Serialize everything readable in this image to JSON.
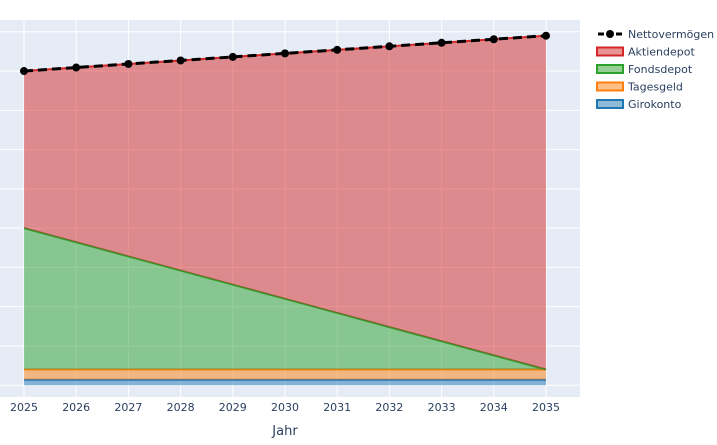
{
  "chart_data": {
    "type": "area",
    "xlabel": "Jahr",
    "ylabel": "",
    "x": [
      2025,
      2026,
      2027,
      2028,
      2029,
      2030,
      2031,
      2032,
      2033,
      2034,
      2035
    ],
    "ylim": [
      -0.3,
      9.3
    ],
    "grid": true,
    "legend_position": "top-right",
    "series": [
      {
        "name": "Girokonto",
        "color": "#1f77b4",
        "values": [
          0.14,
          0.14,
          0.14,
          0.14,
          0.14,
          0.14,
          0.14,
          0.14,
          0.14,
          0.14,
          0.14
        ]
      },
      {
        "name": "Tagesgeld",
        "color": "#ff7f0e",
        "values": [
          0.26,
          0.26,
          0.26,
          0.26,
          0.26,
          0.26,
          0.26,
          0.26,
          0.26,
          0.26,
          0.26
        ]
      },
      {
        "name": "Fondsdepot",
        "color": "#2ca02c",
        "values": [
          3.6,
          3.24,
          2.88,
          2.52,
          2.16,
          1.8,
          1.44,
          1.08,
          0.72,
          0.36,
          0.0
        ]
      },
      {
        "name": "Aktiendepot",
        "color": "#d62728",
        "values": [
          4.0,
          4.45,
          4.9,
          5.35,
          5.8,
          6.25,
          6.7,
          7.15,
          7.6,
          8.05,
          8.5
        ]
      }
    ],
    "total_series": {
      "name": "Nettovermögen",
      "color": "#000000",
      "values": [
        8.0,
        8.09,
        8.18,
        8.27,
        8.36,
        8.45,
        8.54,
        8.63,
        8.72,
        8.81,
        8.9
      ]
    },
    "legend_order": [
      "Nettovermögen",
      "Aktiendepot",
      "Fondsdepot",
      "Tagesgeld",
      "Girokonto"
    ]
  }
}
